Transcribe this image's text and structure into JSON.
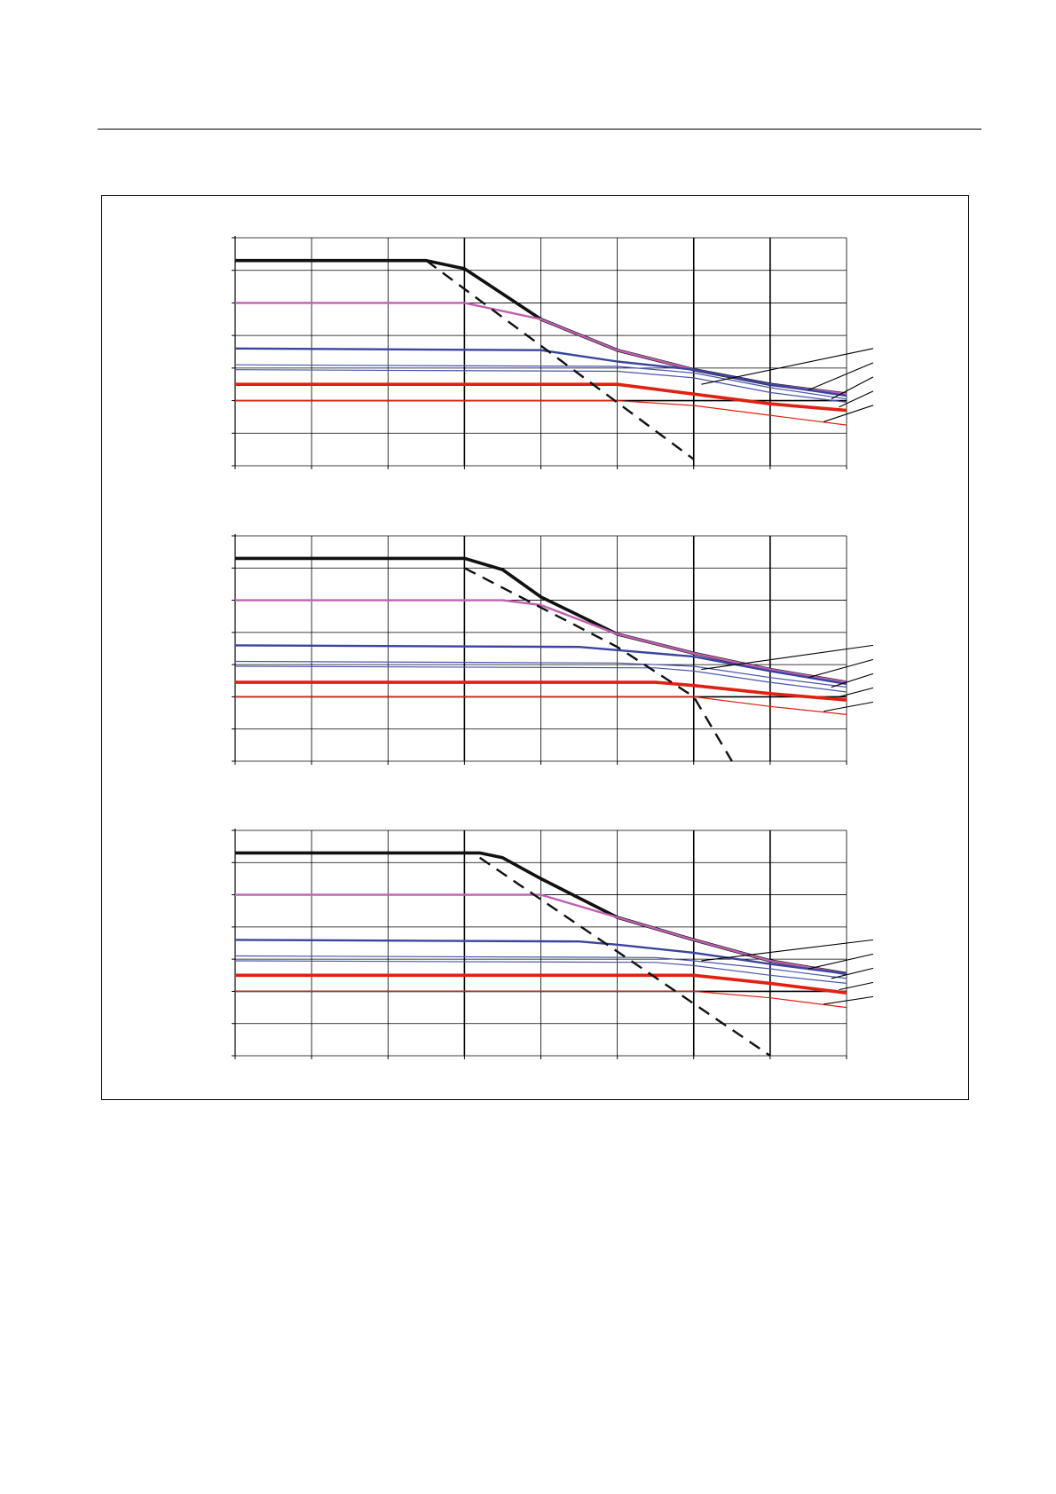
{
  "chart_data": [
    {
      "type": "line",
      "xlim": [
        0,
        8
      ],
      "ylim": [
        0,
        7
      ],
      "grid": true,
      "plateau_end_x": 3.0,
      "series": [
        {
          "color": "#111111",
          "style": "thick",
          "values": [
            [
              0,
              6.3
            ],
            [
              2.5,
              6.3
            ],
            [
              3.0,
              6.05
            ],
            [
              4.0,
              4.5
            ],
            [
              5.0,
              3.55
            ],
            [
              6.0,
              2.95
            ],
            [
              7.0,
              2.5
            ],
            [
              8.0,
              2.2
            ]
          ]
        },
        {
          "color": "#c060b0",
          "style": "medium",
          "values": [
            [
              0,
              5.0
            ],
            [
              3.0,
              5.0
            ],
            [
              4.0,
              4.5
            ],
            [
              5.0,
              3.55
            ],
            [
              6.0,
              2.95
            ],
            [
              7.0,
              2.5
            ],
            [
              8.0,
              2.2
            ]
          ]
        },
        {
          "color": "#3a45a0",
          "style": "medium",
          "values": [
            [
              0,
              3.6
            ],
            [
              4.0,
              3.55
            ],
            [
              5.0,
              3.2
            ],
            [
              6.0,
              2.95
            ],
            [
              7.0,
              2.5
            ],
            [
              8.0,
              2.15
            ]
          ]
        },
        {
          "color": "#4a55aa",
          "style": "thin",
          "values": [
            [
              0,
              3.1
            ],
            [
              5.0,
              3.05
            ],
            [
              6.0,
              2.85
            ],
            [
              7.0,
              2.4
            ],
            [
              8.0,
              2.05
            ]
          ]
        },
        {
          "color": "#4a55aa",
          "style": "thin",
          "values": [
            [
              0,
              2.95
            ],
            [
              5.0,
              2.9
            ],
            [
              6.0,
              2.7
            ],
            [
              7.0,
              2.25
            ],
            [
              8.0,
              1.95
            ]
          ]
        },
        {
          "color": "#e02010",
          "style": "thick",
          "values": [
            [
              0,
              2.5
            ],
            [
              5.0,
              2.5
            ],
            [
              6.0,
              2.2
            ],
            [
              7.0,
              1.9
            ],
            [
              8.0,
              1.7
            ]
          ]
        },
        {
          "color": "#e02010",
          "style": "thin",
          "values": [
            [
              0,
              2.0
            ],
            [
              5.0,
              2.0
            ],
            [
              6.0,
              1.85
            ],
            [
              7.0,
              1.55
            ],
            [
              8.0,
              1.25
            ]
          ]
        },
        {
          "color": "#111111",
          "style": "dashed",
          "values": [
            [
              2.5,
              6.3
            ],
            [
              6.0,
              0.2
            ]
          ]
        }
      ]
    },
    {
      "type": "line",
      "xlim": [
        0,
        8
      ],
      "ylim": [
        0,
        7
      ],
      "grid": true,
      "plateau_end_x": 3.0,
      "series": [
        {
          "color": "#111111",
          "style": "thick",
          "values": [
            [
              0,
              6.3
            ],
            [
              3.0,
              6.3
            ],
            [
              3.5,
              5.95
            ],
            [
              4.0,
              5.1
            ],
            [
              5.0,
              3.95
            ],
            [
              6.0,
              3.35
            ],
            [
              7.0,
              2.85
            ],
            [
              8.0,
              2.45
            ]
          ]
        },
        {
          "color": "#c060b0",
          "style": "medium",
          "values": [
            [
              0,
              5.0
            ],
            [
              3.5,
              5.0
            ],
            [
              4.0,
              4.85
            ],
            [
              5.0,
              3.95
            ],
            [
              6.0,
              3.35
            ],
            [
              7.0,
              2.85
            ],
            [
              8.0,
              2.45
            ]
          ]
        },
        {
          "color": "#3a45a0",
          "style": "medium",
          "values": [
            [
              0,
              3.6
            ],
            [
              4.5,
              3.55
            ],
            [
              5.0,
              3.45
            ],
            [
              6.0,
              3.25
            ],
            [
              7.0,
              2.8
            ],
            [
              8.0,
              2.4
            ]
          ]
        },
        {
          "color": "#4a55aa",
          "style": "thin",
          "values": [
            [
              0,
              3.1
            ],
            [
              5.0,
              3.05
            ],
            [
              6.0,
              2.95
            ],
            [
              7.0,
              2.6
            ],
            [
              8.0,
              2.3
            ]
          ]
        },
        {
          "color": "#4a55aa",
          "style": "thin",
          "values": [
            [
              0,
              2.95
            ],
            [
              5.5,
              2.9
            ],
            [
              6.0,
              2.8
            ],
            [
              7.0,
              2.45
            ],
            [
              8.0,
              2.15
            ]
          ]
        },
        {
          "color": "#e02010",
          "style": "thick",
          "values": [
            [
              0,
              2.45
            ],
            [
              5.5,
              2.45
            ],
            [
              6.0,
              2.35
            ],
            [
              7.0,
              2.1
            ],
            [
              8.0,
              1.9
            ]
          ]
        },
        {
          "color": "#e02010",
          "style": "thin",
          "values": [
            [
              0,
              2.0
            ],
            [
              6.0,
              2.0
            ],
            [
              7.0,
              1.7
            ],
            [
              8.0,
              1.45
            ]
          ]
        },
        {
          "color": "#111111",
          "style": "dashed",
          "values": [
            [
              3.0,
              6.0
            ],
            [
              5.0,
              3.55
            ],
            [
              6.0,
              2.0
            ],
            [
              6.5,
              0.0
            ]
          ]
        }
      ]
    },
    {
      "type": "line",
      "xlim": [
        0,
        8
      ],
      "ylim": [
        0,
        7
      ],
      "grid": true,
      "plateau_end_x": 3.0,
      "series": [
        {
          "color": "#111111",
          "style": "thick",
          "values": [
            [
              0,
              6.3
            ],
            [
              3.2,
              6.3
            ],
            [
              3.5,
              6.15
            ],
            [
              4.0,
              5.5
            ],
            [
              5.0,
              4.3
            ],
            [
              6.0,
              3.6
            ],
            [
              7.0,
              2.95
            ],
            [
              8.0,
              2.55
            ]
          ]
        },
        {
          "color": "#c060b0",
          "style": "medium",
          "values": [
            [
              0,
              5.0
            ],
            [
              4.0,
              5.0
            ],
            [
              5.0,
              4.3
            ],
            [
              6.0,
              3.6
            ],
            [
              7.0,
              2.95
            ],
            [
              8.0,
              2.55
            ]
          ]
        },
        {
          "color": "#3a45a0",
          "style": "medium",
          "values": [
            [
              0,
              3.6
            ],
            [
              4.5,
              3.55
            ],
            [
              5.0,
              3.45
            ],
            [
              6.0,
              3.2
            ],
            [
              7.0,
              2.85
            ],
            [
              8.0,
              2.55
            ]
          ]
        },
        {
          "color": "#4a55aa",
          "style": "thin",
          "values": [
            [
              0,
              3.1
            ],
            [
              5.5,
              3.05
            ],
            [
              6.0,
              2.95
            ],
            [
              7.0,
              2.7
            ],
            [
              8.0,
              2.4
            ]
          ]
        },
        {
          "color": "#4a55aa",
          "style": "thin",
          "values": [
            [
              0,
              2.95
            ],
            [
              5.5,
              2.9
            ],
            [
              6.0,
              2.8
            ],
            [
              7.0,
              2.5
            ],
            [
              8.0,
              2.25
            ]
          ]
        },
        {
          "color": "#e02010",
          "style": "thick",
          "values": [
            [
              0,
              2.5
            ],
            [
              6.0,
              2.5
            ],
            [
              7.0,
              2.25
            ],
            [
              8.0,
              1.95
            ]
          ]
        },
        {
          "color": "#e02010",
          "style": "thin",
          "values": [
            [
              0,
              2.0
            ],
            [
              6.0,
              2.0
            ],
            [
              7.0,
              1.8
            ],
            [
              8.0,
              1.5
            ]
          ]
        },
        {
          "color": "#111111",
          "style": "dashed",
          "values": [
            [
              3.2,
              6.15
            ],
            [
              7.0,
              0.0
            ]
          ]
        }
      ]
    }
  ]
}
